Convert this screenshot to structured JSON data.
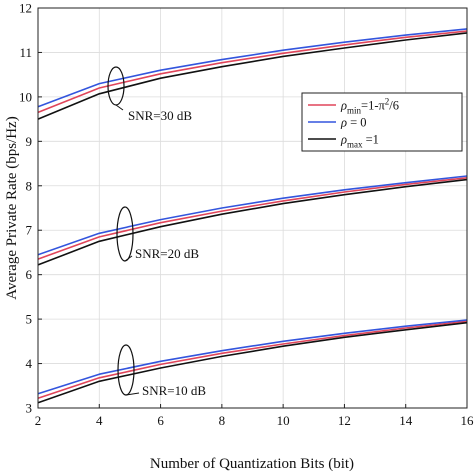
{
  "chart_data": {
    "type": "line",
    "xlabel": "Number of Quantization Bits (bit)",
    "ylabel": "Average Private Rate (bps/Hz)",
    "xlim": [
      2,
      16
    ],
    "ylim": [
      3,
      12
    ],
    "xticks": [
      2,
      4,
      6,
      8,
      10,
      12,
      14,
      16
    ],
    "yticks": [
      3,
      4,
      5,
      6,
      7,
      8,
      9,
      10,
      11,
      12
    ],
    "grid": true,
    "legend_position": "right",
    "series_colors": [
      "#e0455a",
      "#3355dd",
      "#111111"
    ],
    "legend": [
      {
        "label_html": "<tspan font-style='italic'>ρ</tspan><tspan font-size='9' dy='4'>min</tspan><tspan dy='-4'>=1-π</tspan><tspan font-size='9' dy='-5'>2</tspan><tspan dy='5'>/6</tspan>"
      },
      {
        "label_html": "<tspan font-style='italic'>ρ</tspan><tspan> = 0</tspan>"
      },
      {
        "label_html": "<tspan font-style='italic'>ρ</tspan><tspan font-size='9' dy='4'>max</tspan><tspan dy='-4'> =1</tspan>"
      }
    ],
    "groups": [
      {
        "annotation": "SNR=30 dB",
        "x": [
          2,
          4,
          6,
          8,
          10,
          12,
          14,
          16
        ],
        "series": [
          {
            "values": [
              9.65,
              10.2,
              10.52,
              10.77,
              10.98,
              11.17,
              11.34,
              11.48
            ]
          },
          {
            "values": [
              9.78,
              10.3,
              10.6,
              10.84,
              11.05,
              11.23,
              11.39,
              11.53
            ]
          },
          {
            "values": [
              9.5,
              10.07,
              10.42,
              10.68,
              10.91,
              11.1,
              11.28,
              11.44
            ]
          }
        ]
      },
      {
        "annotation": "SNR=20 dB",
        "x": [
          2,
          4,
          6,
          8,
          10,
          12,
          14,
          16
        ],
        "series": [
          {
            "values": [
              6.35,
              6.85,
              7.17,
              7.43,
              7.66,
              7.86,
              8.03,
              8.18
            ]
          },
          {
            "values": [
              6.45,
              6.93,
              7.24,
              7.5,
              7.72,
              7.91,
              8.07,
              8.22
            ]
          },
          {
            "values": [
              6.22,
              6.75,
              7.08,
              7.36,
              7.6,
              7.8,
              7.98,
              8.14
            ]
          }
        ]
      },
      {
        "annotation": "SNR=10 dB",
        "x": [
          2,
          4,
          6,
          8,
          10,
          12,
          14,
          16
        ],
        "series": [
          {
            "values": [
              3.22,
              3.68,
              3.98,
              4.23,
              4.44,
              4.63,
              4.8,
              4.95
            ]
          },
          {
            "values": [
              3.32,
              3.76,
              4.05,
              4.29,
              4.5,
              4.68,
              4.84,
              4.98
            ]
          },
          {
            "values": [
              3.12,
              3.6,
              3.9,
              4.16,
              4.39,
              4.59,
              4.76,
              4.92
            ]
          }
        ]
      }
    ]
  }
}
